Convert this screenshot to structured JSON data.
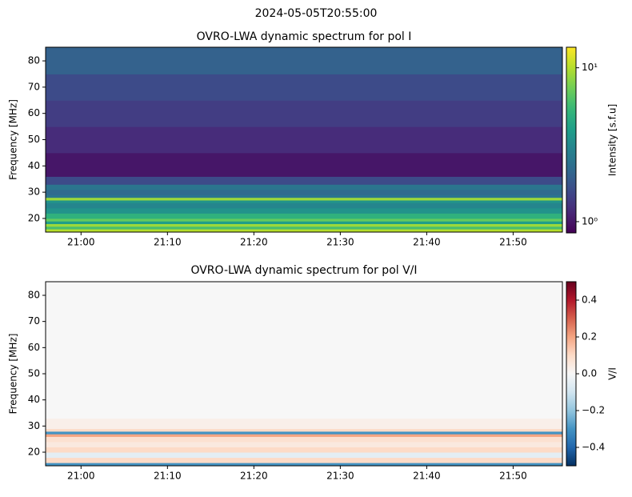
{
  "chart_data": [
    {
      "type": "heatmap",
      "suptitle": "2024-05-05T20:55:00",
      "title": "OVRO-LWA dynamic spectrum for pol I",
      "ylabel": "Frequency [MHz]",
      "colorbar_label": "Intensity [s.f.u]",
      "colormap": "viridis",
      "log": true,
      "xlim": [
        1255.9,
        1315.7
      ],
      "xticks": [
        {
          "value": 1260,
          "label": "21:00"
        },
        {
          "value": 1270,
          "label": "21:10"
        },
        {
          "value": 1280,
          "label": "21:20"
        },
        {
          "value": 1290,
          "label": "21:30"
        },
        {
          "value": 1300,
          "label": "21:40"
        },
        {
          "value": 1310,
          "label": "21:50"
        }
      ],
      "ylim": [
        14.8,
        85.2
      ],
      "yticks": [
        20,
        30,
        40,
        50,
        60,
        70,
        80
      ],
      "clim": [
        0.845,
        13.6
      ],
      "cticks": [
        {
          "value": 1,
          "label": "10⁰"
        },
        {
          "value": 10,
          "label": "10¹"
        }
      ],
      "y_bins": [
        14.8,
        16,
        17,
        18,
        19,
        20,
        22,
        24,
        26,
        27,
        28,
        29,
        31,
        33,
        36,
        45,
        55,
        65,
        75,
        85.2
      ],
      "values": [
        10,
        6,
        9,
        4,
        7,
        5,
        3.5,
        3,
        3.5,
        9,
        2.5,
        2.2,
        2.5,
        1.6,
        1.0,
        1.2,
        1.4,
        1.6,
        2.0
      ]
    },
    {
      "type": "heatmap",
      "title": "OVRO-LWA dynamic spectrum for pol V/I",
      "ylabel": "Frequency [MHz]",
      "colorbar_label": "V/I",
      "colormap": "RdBu_r",
      "log": false,
      "xlim": [
        1255.9,
        1315.7
      ],
      "xticks": [
        {
          "value": 1260,
          "label": "21:00"
        },
        {
          "value": 1270,
          "label": "21:10"
        },
        {
          "value": 1280,
          "label": "21:20"
        },
        {
          "value": 1290,
          "label": "21:30"
        },
        {
          "value": 1300,
          "label": "21:40"
        },
        {
          "value": 1310,
          "label": "21:50"
        }
      ],
      "ylim": [
        14.8,
        85.2
      ],
      "yticks": [
        20,
        30,
        40,
        50,
        60,
        70,
        80
      ],
      "clim": [
        -0.5,
        0.5
      ],
      "cticks": [
        0.4,
        0.2,
        {
          "value": 0,
          "label": "0.0"
        },
        {
          "value": -0.2,
          "label": "−0.2"
        },
        {
          "value": -0.4,
          "label": "−0.4"
        }
      ],
      "y_bins": [
        14.8,
        16,
        18,
        20,
        22,
        24,
        26,
        27,
        28,
        29,
        33,
        85.2
      ],
      "values": [
        -0.3,
        0.1,
        -0.05,
        0.1,
        0.05,
        0.08,
        0.2,
        -0.3,
        0.1,
        0.03,
        0.0
      ]
    }
  ]
}
